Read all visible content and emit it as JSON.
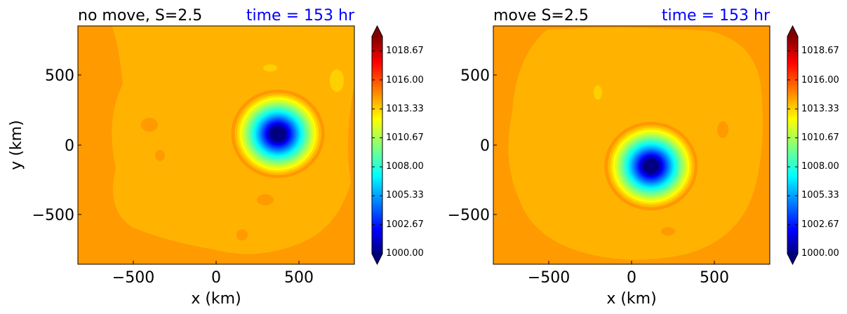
{
  "chart_data": [
    {
      "type": "heatmap",
      "title": "no move, S=2.5",
      "time_label": "time = 153 hr",
      "xlabel": "x (km)",
      "ylabel": "y (km)",
      "xlim": [
        -850,
        850
      ],
      "ylim": [
        -850,
        850
      ],
      "xticks": [
        -500,
        0,
        500
      ],
      "yticks": [
        -500,
        0,
        500
      ],
      "xtick_labels": [
        "−500",
        "0",
        "500"
      ],
      "ytick_labels": [
        "−500",
        "0",
        "500"
      ],
      "vortex_center": [
        380,
        80
      ],
      "core_pressure": 1000.0,
      "environment_pressure": 1014.5,
      "colorbar": {
        "min": 1000.0,
        "max": 1020.0,
        "tick_labels": [
          "1018.67",
          "1016.00",
          "1013.33",
          "1010.67",
          "1008.00",
          "1005.33",
          "1002.67",
          "1000.00"
        ]
      }
    },
    {
      "type": "heatmap",
      "title": "move S=2.5",
      "time_label": "time = 153 hr",
      "xlabel": "x (km)",
      "ylabel": "",
      "xlim": [
        -850,
        850
      ],
      "ylim": [
        -850,
        850
      ],
      "xticks": [
        -500,
        0,
        500
      ],
      "yticks": [
        -500,
        0,
        500
      ],
      "xtick_labels": [
        "−500",
        "0",
        "500"
      ],
      "ytick_labels": [
        "−500",
        "0",
        "500"
      ],
      "vortex_center": [
        120,
        -150
      ],
      "core_pressure": 1000.0,
      "environment_pressure": 1014.5,
      "colorbar": {
        "min": 1000.0,
        "max": 1020.0,
        "tick_labels": [
          "1018.67",
          "1016.00",
          "1013.33",
          "1010.67",
          "1008.00",
          "1005.33",
          "1002.67",
          "1000.00"
        ]
      }
    }
  ],
  "colors": {
    "title_time": "#0000ff",
    "jet_stops": [
      "#000080",
      "#0000ff",
      "#00ffff",
      "#ffff00",
      "#ff0000",
      "#800000"
    ],
    "background_orange": "#ff9a00",
    "background_amber": "#ffb300"
  }
}
